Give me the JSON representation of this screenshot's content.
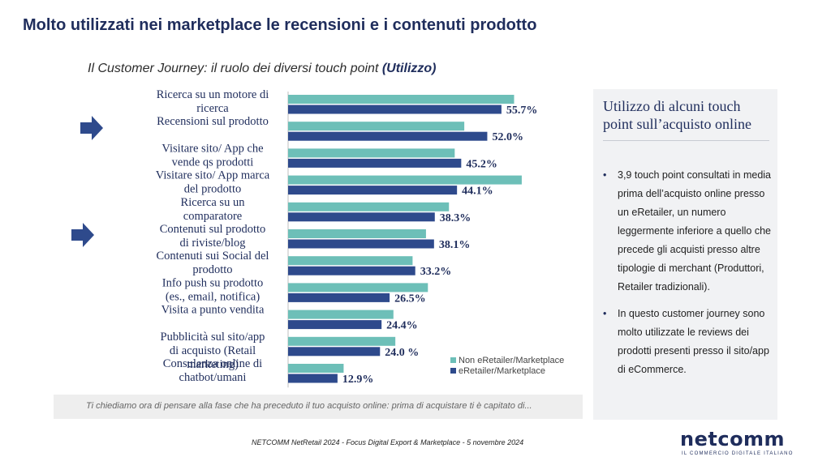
{
  "header": {
    "title": "Molto utilizzati nei marketplace le recensioni e i contenuti prodotto",
    "subtitle_main": "Il Customer Journey: il ruolo dei diversi touch point ",
    "subtitle_bold": "(Utilizzo)"
  },
  "chart_data": {
    "type": "bar",
    "orientation": "horizontal",
    "categories": [
      "Ricerca su un motore di ricerca",
      "Recensioni sul prodotto",
      "Visitare sito/ App che vende qs prodotti",
      "Visitare sito/ App marca del prodotto",
      "Ricerca su un comparatore",
      "Contenuti sul prodotto di riviste/blog",
      "Contenuti sui Social del prodotto",
      "Info push su prodotto (es., email, notifica)",
      "Visita a punto vendita",
      "Pubblicità sul sito/app di acquisto (Retail marketing)",
      "Consulenza online di chatbot/umani"
    ],
    "series": [
      {
        "name": "Non eRetailer/Marketplace",
        "color": "#6dbfb8",
        "values": [
          59.0,
          46.0,
          43.5,
          61.0,
          42.0,
          36.0,
          32.5,
          36.5,
          27.5,
          28.0,
          14.5
        ]
      },
      {
        "name": "eRetailer/Marketplace",
        "color": "#2e4a8c",
        "values": [
          55.7,
          52.0,
          45.2,
          44.1,
          38.3,
          38.1,
          33.2,
          26.5,
          24.4,
          24.0,
          12.9
        ]
      }
    ],
    "data_labels": [
      "55.7%",
      "52.0%",
      "45.2%",
      "44.1%",
      "38.3%",
      "38.1%",
      "33.2%",
      "26.5%",
      "24.4%",
      "24.0 %",
      "12.9%"
    ],
    "legend_position": "bottom-right",
    "grid": false,
    "xlim": [
      0,
      65
    ]
  },
  "highlight_arrows": [
    "arrow-icon",
    "arrow-icon"
  ],
  "side_panel": {
    "title": "Utilizzo di alcuni touch point sull’acquisto online",
    "bullets": [
      "3,9 touch point consultati in media prima dell’acquisto online presso un eRetailer, un numero leggermente inferiore a quello che precede gli acquisti presso altre tipologie di merchant (Produttori, Retailer tradizionali).",
      "In questo customer journey sono molto utilizzate le reviews dei prodotti presenti presso il sito/app di eCommerce."
    ]
  },
  "question": "Ti chiediamo ora di pensare alla fase che ha preceduto il tuo acquisto online: prima di acquistare ti è capitato di...",
  "footer": "NETCOMM NetRetail 2024 - Focus Digital Export & Marketplace - 5 novembre 2024",
  "logo": {
    "word": "netcomm",
    "tagline": "IL COMMERCIO DIGITALE ITALIANO"
  }
}
